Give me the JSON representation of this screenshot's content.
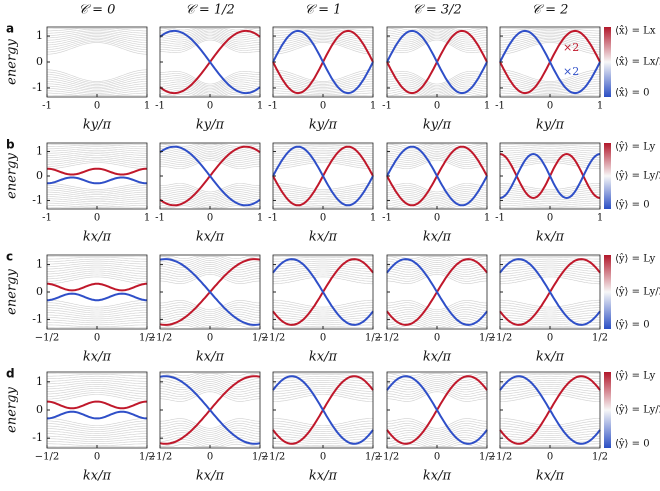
{
  "figure": {
    "columns": [
      "𝒞 = 0",
      "𝒞 = 1/2",
      "𝒞 = 1",
      "𝒞 = 3/2",
      "𝒞 = 2"
    ],
    "y_label": "energy",
    "annotations": [
      "×2",
      "×2"
    ],
    "rows": [
      {
        "label": "a",
        "x_label": "ky/π",
        "xlim": [
          -1,
          1
        ],
        "ylim": [
          -1.35,
          1.35
        ],
        "xticks": [
          -1,
          0,
          1
        ],
        "yticks": [
          -1,
          0,
          1
        ],
        "colorbar": [
          "⟨x̂⟩ = Lx",
          "⟨x̂⟩ = Lx/2",
          "⟨x̂⟩ = 0"
        ]
      },
      {
        "label": "b",
        "x_label": "kx/π",
        "xlim": [
          -1,
          1
        ],
        "ylim": [
          -1.35,
          1.35
        ],
        "xticks": [
          -1,
          0,
          1
        ],
        "yticks": [
          -1,
          0,
          1
        ],
        "colorbar": [
          "⟨ŷ⟩ = Ly",
          "⟨ŷ⟩ = Ly/2",
          "⟨ŷ⟩ = 0"
        ]
      },
      {
        "label": "c",
        "x_label": "kx/π",
        "xlim": [
          -0.5,
          0.5
        ],
        "ylim": [
          -1.35,
          1.35
        ],
        "xticks": [
          {
            "value": -0.5,
            "label": "−1/2"
          },
          0,
          {
            "value": 0.5,
            "label": "1/2"
          }
        ],
        "yticks": [
          -1,
          0,
          1
        ],
        "colorbar": [
          "⟨ŷ⟩ = Ly",
          "⟨ŷ⟩ = Ly/2",
          "⟨ŷ⟩ = 0"
        ]
      },
      {
        "label": "d",
        "x_label": "kx/π",
        "xlim": [
          -0.5,
          0.5
        ],
        "ylim": [
          -1.35,
          1.35
        ],
        "xticks": [
          {
            "value": -0.5,
            "label": "−1/2"
          },
          0,
          {
            "value": 0.5,
            "label": "1/2"
          }
        ],
        "yticks": [
          -1,
          0,
          1
        ],
        "colorbar": [
          "⟨ŷ⟩ = Ly",
          "⟨ŷ⟩ = Ly/2",
          "⟨ŷ⟩ = 0"
        ]
      }
    ]
  }
}
